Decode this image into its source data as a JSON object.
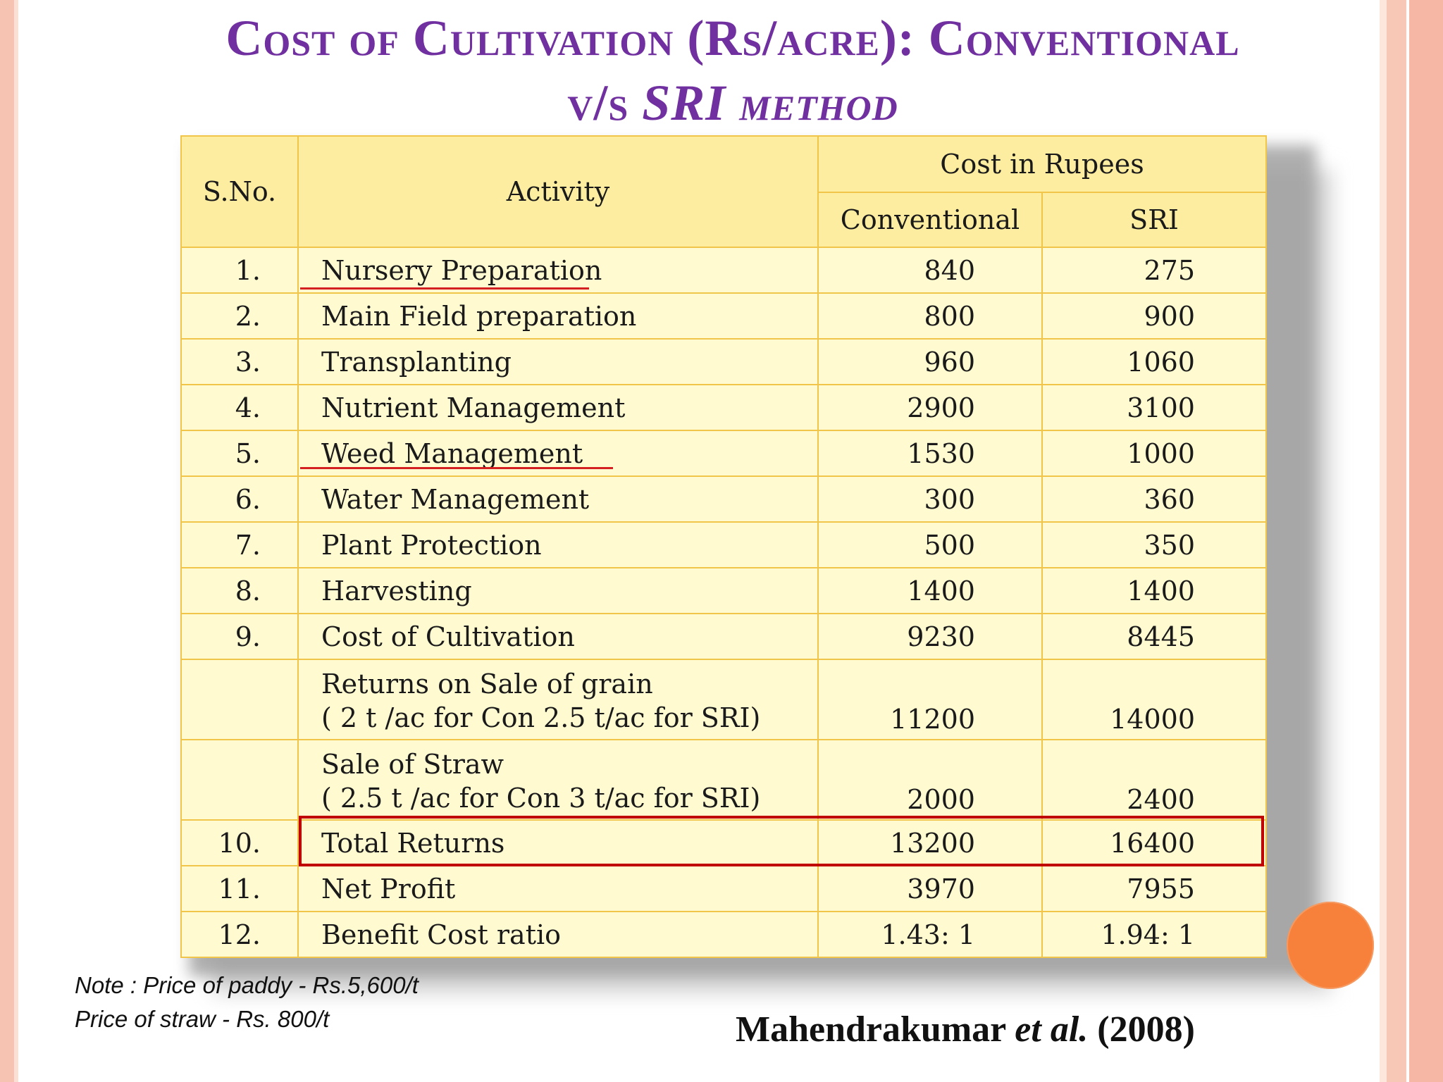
{
  "title": {
    "line1": "Cost of Cultivation (Rs/acre): Conventional",
    "line2_prefix": "v/s ",
    "line2_italic": "SRI method"
  },
  "table": {
    "headers": {
      "sno": "S.No.",
      "activity": "Activity",
      "cost_group": "Cost in Rupees",
      "conventional": "Conventional",
      "sri": "SRI"
    },
    "rows": [
      {
        "sno": "1.",
        "activity": "Nursery Preparation",
        "conventional": "840",
        "sri": "275"
      },
      {
        "sno": "2.",
        "activity": "Main Field preparation",
        "conventional": "800",
        "sri": "900"
      },
      {
        "sno": "3.",
        "activity": "Transplanting",
        "conventional": "960",
        "sri": "1060"
      },
      {
        "sno": "4.",
        "activity": "Nutrient Management",
        "conventional": "2900",
        "sri": "3100"
      },
      {
        "sno": "5.",
        "activity": "Weed Management",
        "conventional": "1530",
        "sri": "1000"
      },
      {
        "sno": "6.",
        "activity": "Water Management",
        "conventional": "300",
        "sri": "360"
      },
      {
        "sno": "7.",
        "activity": "Plant Protection",
        "conventional": "500",
        "sri": "350"
      },
      {
        "sno": "8.",
        "activity": "Harvesting",
        "conventional": "1400",
        "sri": "1400"
      },
      {
        "sno": "9.",
        "activity": "Cost of Cultivation",
        "conventional": "9230",
        "sri": "8445"
      },
      {
        "sno": "",
        "activity": "Returns on Sale of grain",
        "activity_sub": "( 2 t /ac for Con 2.5 t/ac for SRI)",
        "conventional": "11200",
        "sri": "14000"
      },
      {
        "sno": "",
        "activity": "Sale of Straw",
        "activity_sub": "( 2.5 t /ac for Con 3 t/ac for SRI)",
        "conventional": "2000",
        "sri": "2400"
      },
      {
        "sno": "10.",
        "activity": "Total Returns",
        "conventional": "13200",
        "sri": "16400"
      },
      {
        "sno": "11.",
        "activity": "Net Profit",
        "conventional": "3970",
        "sri": "7955"
      },
      {
        "sno": "12.",
        "activity": "Benefit Cost ratio",
        "conventional": "1.43: 1",
        "sri": "1.94: 1"
      }
    ]
  },
  "notes": {
    "line1": "Note : Price of paddy - Rs.5,600/t",
    "line2": "Price of straw - Rs. 800/t"
  },
  "citation": {
    "author": "Mahendrakumar ",
    "etal": "et al.",
    "year": " (2008)"
  },
  "colors": {
    "title": "#7030a0",
    "table_fill": "#fffad0",
    "table_border": "#f0c54a",
    "highlight": "#c00000",
    "accent_circle": "#f7813a"
  }
}
